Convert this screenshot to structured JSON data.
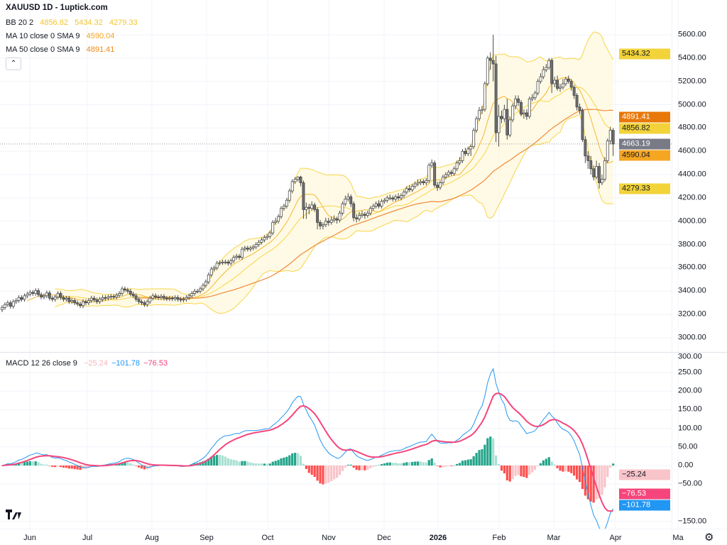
{
  "header": {
    "title": "XAUUSD 1D - 1uptick.com",
    "collapse_icon": "chevron-up-icon"
  },
  "indicators": {
    "bb": {
      "label": "BB 20 2",
      "basis": "4856.82",
      "upper": "5434.32",
      "lower": "4279.33",
      "color": "#f2c530"
    },
    "ma10": {
      "label": "MA 10 close 0 SMA 9",
      "value": "4590.04",
      "color": "#f5a623"
    },
    "ma50": {
      "label": "MA 50 close 0 SMA 9",
      "value": "4891.41",
      "color": "#ef8a1a"
    },
    "macd": {
      "label": "MACD 12 26 close 9",
      "histogram": "−25.24",
      "macd": "−101.78",
      "signal": "−76.53",
      "histogram_color": "#f7b6bd",
      "macd_color": "#2196f3",
      "signal_color": "#f5457c"
    }
  },
  "price_axis": {
    "ticks": [
      "3000.00",
      "3200.00",
      "3400.00",
      "3600.00",
      "3800.00",
      "4000.00",
      "4200.00",
      "4400.00",
      "4600.00",
      "4800.00",
      "5000.00",
      "5200.00",
      "5400.00",
      "5600.00"
    ],
    "tags": [
      {
        "text": "5434.32",
        "value": 5434.32,
        "bg": "#f2d33a",
        "fg": "#131722"
      },
      {
        "text": "4891.41",
        "value": 4891.41,
        "bg": "#e8780a",
        "fg": "#ffffff"
      },
      {
        "text": "4856.82",
        "value": 4856.82,
        "bg": "#f2d33a",
        "fg": "#131722"
      },
      {
        "text": "4663.19",
        "value": 4663.19,
        "bg": "#787b86",
        "fg": "#ffffff"
      },
      {
        "text": "4590.04",
        "value": 4590.04,
        "bg": "#f5a623",
        "fg": "#131722"
      },
      {
        "text": "4279.33",
        "value": 4279.33,
        "bg": "#f2d33a",
        "fg": "#131722"
      }
    ]
  },
  "macd_axis": {
    "ticks": [
      "300.00",
      "250.00",
      "200.00",
      "150.00",
      "100.00",
      "50.00",
      "0.00",
      "−50.00",
      "−150.00"
    ],
    "tags": [
      {
        "text": "−25.24",
        "value": -25.24,
        "bg": "#f8c4c9",
        "fg": "#131722"
      },
      {
        "text": "−76.53",
        "value": -76.53,
        "bg": "#f5457c",
        "fg": "#ffffff"
      },
      {
        "text": "−101.78",
        "value": -101.78,
        "bg": "#2196f3",
        "fg": "#ffffff"
      }
    ]
  },
  "time_axis": {
    "labels": [
      "Jun",
      "Jul",
      "Aug",
      "Sep",
      "Oct",
      "Nov",
      "Dec",
      "2026",
      "Feb",
      "Mar",
      "Apr",
      "Ma"
    ],
    "bold_label": "2026"
  },
  "footer": {
    "logo": "TV",
    "settings_icon": "gear-icon"
  },
  "chart_data": {
    "type": "candlestick",
    "symbol": "XAUUSD",
    "interval": "1D",
    "ylim": [
      2900,
      5750
    ],
    "macd_ylim": [
      -185,
      300
    ],
    "last_price": 4663.19,
    "grid": true,
    "colors": {
      "up_body": "#ffffff",
      "down_body": "#6f6f6f",
      "wick": "#4a4a4a",
      "bb_band": "#f7d54a",
      "bb_fill": "#fff8dc",
      "ma10": "#f5b533",
      "ma50": "#ef8a3a",
      "hist_up_strong": "#22a48a",
      "hist_up_weak": "#a8e0d2",
      "hist_down_strong": "#ff4f4f",
      "hist_down_weak": "#f8c4c9"
    },
    "bb_params": {
      "length": 20,
      "mult": 2
    },
    "ma_lengths": [
      10,
      50
    ],
    "macd_params": {
      "fast": 12,
      "slow": 26,
      "signal": 9
    },
    "ohlc": [
      [
        3240,
        3280,
        3220,
        3260
      ],
      [
        3260,
        3305,
        3240,
        3285
      ],
      [
        3285,
        3320,
        3265,
        3300
      ],
      [
        3300,
        3320,
        3250,
        3270
      ],
      [
        3270,
        3330,
        3250,
        3310
      ],
      [
        3310,
        3340,
        3290,
        3320
      ],
      [
        3320,
        3365,
        3300,
        3345
      ],
      [
        3345,
        3365,
        3310,
        3330
      ],
      [
        3330,
        3380,
        3310,
        3360
      ],
      [
        3360,
        3395,
        3340,
        3375
      ],
      [
        3375,
        3410,
        3355,
        3390
      ],
      [
        3390,
        3410,
        3360,
        3380
      ],
      [
        3380,
        3425,
        3360,
        3405
      ],
      [
        3405,
        3425,
        3350,
        3370
      ],
      [
        3370,
        3390,
        3330,
        3350
      ],
      [
        3350,
        3380,
        3330,
        3360
      ],
      [
        3360,
        3405,
        3340,
        3385
      ],
      [
        3385,
        3405,
        3320,
        3340
      ],
      [
        3340,
        3360,
        3310,
        3330
      ],
      [
        3330,
        3370,
        3310,
        3350
      ],
      [
        3350,
        3400,
        3330,
        3380
      ],
      [
        3380,
        3400,
        3325,
        3345
      ],
      [
        3345,
        3365,
        3310,
        3330
      ],
      [
        3330,
        3360,
        3310,
        3340
      ],
      [
        3340,
        3360,
        3290,
        3310
      ],
      [
        3310,
        3340,
        3290,
        3320
      ],
      [
        3320,
        3340,
        3280,
        3300
      ],
      [
        3300,
        3320,
        3270,
        3290
      ],
      [
        3290,
        3310,
        3255,
        3275
      ],
      [
        3275,
        3330,
        3255,
        3310
      ],
      [
        3310,
        3330,
        3280,
        3300
      ],
      [
        3300,
        3340,
        3280,
        3320
      ],
      [
        3320,
        3360,
        3300,
        3340
      ],
      [
        3340,
        3360,
        3305,
        3325
      ],
      [
        3325,
        3345,
        3290,
        3310
      ],
      [
        3310,
        3350,
        3290,
        3330
      ],
      [
        3330,
        3365,
        3310,
        3345
      ],
      [
        3345,
        3365,
        3320,
        3340
      ],
      [
        3340,
        3370,
        3320,
        3350
      ],
      [
        3350,
        3375,
        3330,
        3355
      ],
      [
        3355,
        3375,
        3330,
        3350
      ],
      [
        3350,
        3385,
        3330,
        3365
      ],
      [
        3365,
        3400,
        3345,
        3380
      ],
      [
        3380,
        3440,
        3360,
        3420
      ],
      [
        3420,
        3440,
        3390,
        3410
      ],
      [
        3410,
        3430,
        3380,
        3400
      ],
      [
        3400,
        3420,
        3355,
        3375
      ],
      [
        3375,
        3395,
        3340,
        3360
      ],
      [
        3360,
        3380,
        3310,
        3330
      ],
      [
        3330,
        3350,
        3290,
        3310
      ],
      [
        3310,
        3330,
        3280,
        3300
      ],
      [
        3300,
        3320,
        3265,
        3285
      ],
      [
        3285,
        3330,
        3265,
        3310
      ],
      [
        3310,
        3360,
        3290,
        3340
      ],
      [
        3340,
        3380,
        3320,
        3360
      ],
      [
        3360,
        3380,
        3330,
        3350
      ],
      [
        3350,
        3370,
        3325,
        3345
      ],
      [
        3345,
        3375,
        3325,
        3355
      ],
      [
        3355,
        3375,
        3320,
        3340
      ],
      [
        3340,
        3360,
        3315,
        3335
      ],
      [
        3335,
        3360,
        3315,
        3340
      ],
      [
        3340,
        3360,
        3315,
        3335
      ],
      [
        3335,
        3365,
        3315,
        3345
      ],
      [
        3345,
        3365,
        3310,
        3330
      ],
      [
        3330,
        3350,
        3305,
        3325
      ],
      [
        3325,
        3350,
        3305,
        3330
      ],
      [
        3330,
        3365,
        3310,
        3345
      ],
      [
        3345,
        3380,
        3325,
        3360
      ],
      [
        3360,
        3400,
        3340,
        3380
      ],
      [
        3380,
        3420,
        3360,
        3400
      ],
      [
        3400,
        3420,
        3380,
        3400
      ],
      [
        3400,
        3440,
        3380,
        3420
      ],
      [
        3420,
        3470,
        3400,
        3450
      ],
      [
        3450,
        3500,
        3430,
        3480
      ],
      [
        3480,
        3560,
        3460,
        3540
      ],
      [
        3540,
        3610,
        3520,
        3590
      ],
      [
        3590,
        3620,
        3570,
        3600
      ],
      [
        3600,
        3660,
        3580,
        3640
      ],
      [
        3640,
        3665,
        3620,
        3645
      ],
      [
        3645,
        3670,
        3625,
        3650
      ],
      [
        3650,
        3670,
        3630,
        3650
      ],
      [
        3650,
        3670,
        3620,
        3640
      ],
      [
        3640,
        3680,
        3620,
        3660
      ],
      [
        3660,
        3710,
        3640,
        3690
      ],
      [
        3690,
        3720,
        3670,
        3700
      ],
      [
        3700,
        3720,
        3670,
        3690
      ],
      [
        3690,
        3780,
        3670,
        3760
      ],
      [
        3760,
        3790,
        3740,
        3770
      ],
      [
        3770,
        3790,
        3740,
        3760
      ],
      [
        3760,
        3790,
        3740,
        3770
      ],
      [
        3770,
        3800,
        3750,
        3780
      ],
      [
        3780,
        3820,
        3760,
        3800
      ],
      [
        3800,
        3840,
        3780,
        3820
      ],
      [
        3820,
        3860,
        3800,
        3840
      ],
      [
        3840,
        3880,
        3820,
        3860
      ],
      [
        3860,
        3890,
        3840,
        3870
      ],
      [
        3870,
        3920,
        3850,
        3900
      ],
      [
        3900,
        4010,
        3880,
        3990
      ],
      [
        3990,
        4030,
        3970,
        4000
      ],
      [
        4000,
        4060,
        3980,
        4040
      ],
      [
        4040,
        4130,
        4020,
        4110
      ],
      [
        4110,
        4150,
        4090,
        4130
      ],
      [
        4130,
        4200,
        4110,
        4180
      ],
      [
        4180,
        4280,
        4160,
        4260
      ],
      [
        4260,
        4360,
        4240,
        4340
      ],
      [
        4340,
        4380,
        4320,
        4360
      ],
      [
        4360,
        4385,
        4340,
        4380
      ],
      [
        4380,
        4390,
        4300,
        4330
      ],
      [
        4330,
        4350,
        4020,
        4100
      ],
      [
        4100,
        4160,
        4020,
        4120
      ],
      [
        4120,
        4150,
        4060,
        4110
      ],
      [
        4110,
        4170,
        4090,
        4140
      ],
      [
        4140,
        4160,
        4080,
        4100
      ],
      [
        4100,
        4120,
        3930,
        3990
      ],
      [
        3990,
        4010,
        3930,
        3960
      ],
      [
        3960,
        3990,
        3930,
        3970
      ],
      [
        3970,
        4030,
        3950,
        4000
      ],
      [
        4000,
        4030,
        3960,
        3990
      ],
      [
        3990,
        4040,
        3970,
        4010
      ],
      [
        4010,
        4050,
        3990,
        4020
      ],
      [
        4020,
        4040,
        3980,
        4010
      ],
      [
        4010,
        4090,
        3990,
        4070
      ],
      [
        4070,
        4170,
        4050,
        4150
      ],
      [
        4150,
        4220,
        4130,
        4190
      ],
      [
        4190,
        4240,
        4170,
        4210
      ],
      [
        4210,
        4230,
        4120,
        4150
      ],
      [
        4150,
        4170,
        4000,
        4030
      ],
      [
        4030,
        4060,
        3990,
        4020
      ],
      [
        4020,
        4080,
        4000,
        4050
      ],
      [
        4050,
        4090,
        4030,
        4060
      ],
      [
        4060,
        4080,
        4020,
        4050
      ],
      [
        4050,
        4090,
        4030,
        4070
      ],
      [
        4070,
        4130,
        4050,
        4110
      ],
      [
        4110,
        4150,
        4090,
        4130
      ],
      [
        4130,
        4170,
        4110,
        4150
      ],
      [
        4150,
        4180,
        4110,
        4130
      ],
      [
        4130,
        4190,
        4110,
        4170
      ],
      [
        4170,
        4200,
        4150,
        4180
      ],
      [
        4180,
        4220,
        4160,
        4200
      ],
      [
        4200,
        4230,
        4180,
        4200
      ],
      [
        4200,
        4220,
        4170,
        4190
      ],
      [
        4190,
        4230,
        4170,
        4210
      ],
      [
        4210,
        4240,
        4180,
        4200
      ],
      [
        4200,
        4240,
        4180,
        4220
      ],
      [
        4220,
        4270,
        4200,
        4250
      ],
      [
        4250,
        4300,
        4230,
        4280
      ],
      [
        4280,
        4310,
        4250,
        4270
      ],
      [
        4270,
        4320,
        4250,
        4300
      ],
      [
        4300,
        4340,
        4280,
        4320
      ],
      [
        4320,
        4360,
        4300,
        4330
      ],
      [
        4330,
        4360,
        4310,
        4340
      ],
      [
        4340,
        4360,
        4310,
        4330
      ],
      [
        4330,
        4370,
        4310,
        4350
      ],
      [
        4350,
        4500,
        4330,
        4480
      ],
      [
        4480,
        4530,
        4460,
        4500
      ],
      [
        4500,
        4520,
        4290,
        4310
      ],
      [
        4310,
        4340,
        4260,
        4290
      ],
      [
        4290,
        4350,
        4270,
        4330
      ],
      [
        4330,
        4400,
        4310,
        4380
      ],
      [
        4380,
        4420,
        4360,
        4400
      ],
      [
        4400,
        4440,
        4380,
        4420
      ],
      [
        4420,
        4440,
        4390,
        4410
      ],
      [
        4410,
        4470,
        4390,
        4450
      ],
      [
        4450,
        4520,
        4430,
        4500
      ],
      [
        4500,
        4550,
        4480,
        4520
      ],
      [
        4520,
        4620,
        4500,
        4600
      ],
      [
        4600,
        4630,
        4560,
        4580
      ],
      [
        4580,
        4640,
        4560,
        4620
      ],
      [
        4620,
        4660,
        4560,
        4640
      ],
      [
        4640,
        4800,
        4620,
        4780
      ],
      [
        4780,
        4900,
        4760,
        4880
      ],
      [
        4880,
        4980,
        4860,
        4950
      ],
      [
        4950,
        4990,
        4920,
        4960
      ],
      [
        4960,
        5200,
        4940,
        5180
      ],
      [
        5180,
        5420,
        5160,
        5400
      ],
      [
        5400,
        5450,
        5300,
        5380
      ],
      [
        5380,
        5600,
        5200,
        5350
      ],
      [
        5350,
        5420,
        4680,
        4760
      ],
      [
        4760,
        5000,
        4640,
        4900
      ],
      [
        4900,
        4950,
        4840,
        4880
      ],
      [
        4880,
        5000,
        4850,
        4960
      ],
      [
        4960,
        5050,
        4700,
        4740
      ],
      [
        4740,
        4900,
        4720,
        4870
      ],
      [
        4870,
        5010,
        4850,
        4990
      ],
      [
        4990,
        5080,
        4960,
        5050
      ],
      [
        5050,
        5080,
        4990,
        5020
      ],
      [
        5020,
        5040,
        4900,
        4920
      ],
      [
        4920,
        4960,
        4880,
        4930
      ],
      [
        4930,
        4960,
        4870,
        4900
      ],
      [
        4900,
        5070,
        4880,
        5050
      ],
      [
        5050,
        5090,
        5030,
        5060
      ],
      [
        5060,
        5120,
        5040,
        5100
      ],
      [
        5100,
        5220,
        5080,
        5200
      ],
      [
        5200,
        5270,
        5180,
        5240
      ],
      [
        5240,
        5330,
        5220,
        5300
      ],
      [
        5300,
        5350,
        5280,
        5320
      ],
      [
        5320,
        5400,
        5300,
        5380
      ],
      [
        5380,
        5400,
        5100,
        5180
      ],
      [
        5180,
        5240,
        5150,
        5210
      ],
      [
        5210,
        5250,
        5120,
        5140
      ],
      [
        5140,
        5180,
        5110,
        5150
      ],
      [
        5150,
        5220,
        5130,
        5180
      ],
      [
        5180,
        5240,
        5160,
        5220
      ],
      [
        5220,
        5250,
        5180,
        5200
      ],
      [
        5200,
        5220,
        5120,
        5150
      ],
      [
        5150,
        5170,
        5050,
        5080
      ],
      [
        5080,
        5100,
        4950,
        4980
      ],
      [
        4980,
        5010,
        4920,
        4950
      ],
      [
        4950,
        4970,
        4680,
        4700
      ],
      [
        4700,
        4730,
        4500,
        4560
      ],
      [
        4560,
        4600,
        4450,
        4520
      ],
      [
        4520,
        4560,
        4400,
        4450
      ],
      [
        4450,
        4480,
        4350,
        4380
      ],
      [
        4380,
        4520,
        4360,
        4470
      ],
      [
        4470,
        4500,
        4280,
        4330
      ],
      [
        4330,
        4400,
        4310,
        4360
      ],
      [
        4360,
        4550,
        4340,
        4520
      ],
      [
        4520,
        4710,
        4500,
        4690
      ],
      [
        4690,
        4810,
        4660,
        4780
      ],
      [
        4780,
        4800,
        4560,
        4663
      ]
    ]
  }
}
